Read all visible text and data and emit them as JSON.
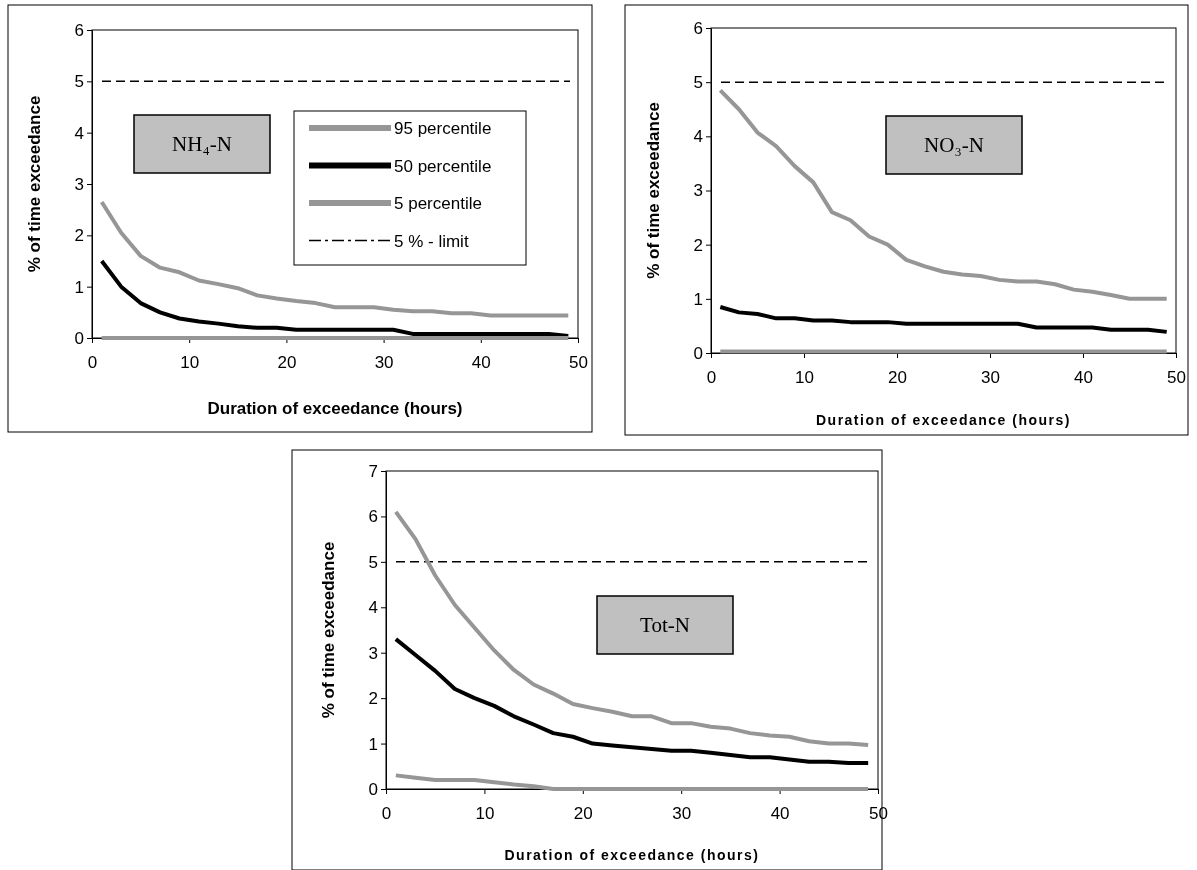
{
  "chart_data": [
    {
      "type": "line",
      "annotations": [
        "NH₄-N"
      ],
      "xlabel": "Duration of exceedance (hours)",
      "ylabel": "% of time exceedance",
      "x": [
        1,
        3,
        5,
        7,
        9,
        11,
        13,
        15,
        17,
        19,
        21,
        23,
        25,
        27,
        29,
        31,
        33,
        35,
        37,
        39,
        41,
        43,
        45,
        47,
        49
      ],
      "xlim": [
        0,
        50
      ],
      "xticks": [
        0,
        10,
        20,
        30,
        40,
        50
      ],
      "ylim": [
        0,
        6
      ],
      "yticks": [
        0,
        1,
        2,
        3,
        4,
        5,
        6
      ],
      "legend": "right",
      "grid": false,
      "ref_lines": [
        {
          "axis": "y",
          "value": 5,
          "label": "5 % - limit",
          "line_style": "dashed",
          "color": "#000000"
        }
      ],
      "series": [
        {
          "name": "95 percentile",
          "color": "#969696",
          "values": [
            2.65,
            2.05,
            1.6,
            1.37,
            1.28,
            1.12,
            1.05,
            0.97,
            0.83,
            0.77,
            0.72,
            0.68,
            0.6,
            0.6,
            0.6,
            0.55,
            0.52,
            0.52,
            0.48,
            0.48,
            0.44,
            0.44,
            0.44,
            0.44,
            0.44
          ]
        },
        {
          "name": "50 percentile",
          "color": "#000000",
          "values": [
            1.5,
            1.0,
            0.68,
            0.5,
            0.38,
            0.32,
            0.28,
            0.23,
            0.2,
            0.2,
            0.16,
            0.16,
            0.16,
            0.16,
            0.16,
            0.16,
            0.08,
            0.08,
            0.08,
            0.08,
            0.08,
            0.08,
            0.08,
            0.08,
            0.04
          ]
        },
        {
          "name": "5 percentile",
          "color": "#969696",
          "values": [
            0,
            0,
            0,
            0,
            0,
            0,
            0,
            0,
            0,
            0,
            0,
            0,
            0,
            0,
            0,
            0,
            0,
            0,
            0,
            0,
            0,
            0,
            0,
            0,
            0
          ]
        }
      ]
    },
    {
      "type": "line",
      "annotations": [
        "NO₃-N"
      ],
      "xlabel": "Duration of exceedance (hours)",
      "ylabel": "% of time exceedance",
      "x": [
        1,
        3,
        5,
        7,
        9,
        11,
        13,
        15,
        17,
        19,
        21,
        23,
        25,
        27,
        29,
        31,
        33,
        35,
        37,
        39,
        41,
        43,
        45,
        47,
        49
      ],
      "xlim": [
        0,
        50
      ],
      "xticks": [
        0,
        10,
        20,
        30,
        40,
        50
      ],
      "ylim": [
        0,
        6
      ],
      "yticks": [
        0,
        1,
        2,
        3,
        4,
        5,
        6
      ],
      "grid": false,
      "ref_lines": [
        {
          "axis": "y",
          "value": 5,
          "line_style": "dashed",
          "color": "#000000"
        }
      ],
      "series": [
        {
          "color": "#969696",
          "values": [
            4.85,
            4.5,
            4.07,
            3.82,
            3.45,
            3.15,
            2.6,
            2.45,
            2.15,
            2.0,
            1.72,
            1.6,
            1.5,
            1.45,
            1.42,
            1.35,
            1.32,
            1.32,
            1.27,
            1.17,
            1.13,
            1.07,
            1.0,
            1.0,
            1.0
          ]
        },
        {
          "color": "#000000",
          "values": [
            0.85,
            0.75,
            0.72,
            0.64,
            0.64,
            0.6,
            0.6,
            0.57,
            0.57,
            0.57,
            0.54,
            0.54,
            0.54,
            0.54,
            0.54,
            0.54,
            0.54,
            0.47,
            0.47,
            0.47,
            0.47,
            0.43,
            0.43,
            0.43,
            0.39
          ]
        },
        {
          "color": "#969696",
          "values": [
            0.03,
            0.03,
            0.03,
            0.03,
            0.03,
            0.03,
            0.03,
            0.03,
            0.03,
            0.03,
            0.03,
            0.03,
            0.03,
            0.03,
            0.03,
            0.03,
            0.03,
            0.03,
            0.03,
            0.03,
            0.03,
            0.03,
            0.03,
            0.03,
            0.03
          ]
        }
      ]
    },
    {
      "type": "line",
      "annotations": [
        "Tot-N"
      ],
      "xlabel": "Duration of exceedance (hours)",
      "ylabel": "% of time exceedance",
      "x": [
        1,
        3,
        5,
        7,
        9,
        11,
        13,
        15,
        17,
        19,
        21,
        23,
        25,
        27,
        29,
        31,
        33,
        35,
        37,
        39,
        41,
        43,
        45,
        47,
        49
      ],
      "xlim": [
        0,
        50
      ],
      "xticks": [
        0,
        10,
        20,
        30,
        40,
        50
      ],
      "ylim": [
        0,
        7
      ],
      "yticks": [
        0,
        1,
        2,
        3,
        4,
        5,
        6,
        7
      ],
      "grid": false,
      "ref_lines": [
        {
          "axis": "y",
          "value": 5,
          "line_style": "dashed",
          "color": "#000000"
        }
      ],
      "series": [
        {
          "color": "#969696",
          "values": [
            6.1,
            5.5,
            4.7,
            4.05,
            3.55,
            3.05,
            2.62,
            2.3,
            2.1,
            1.87,
            1.78,
            1.7,
            1.6,
            1.6,
            1.45,
            1.45,
            1.37,
            1.33,
            1.23,
            1.18,
            1.15,
            1.05,
            1.0,
            1.0,
            0.97
          ]
        },
        {
          "color": "#000000",
          "values": [
            3.3,
            2.95,
            2.6,
            2.2,
            2.0,
            1.83,
            1.6,
            1.42,
            1.23,
            1.15,
            1.0,
            0.96,
            0.92,
            0.88,
            0.84,
            0.84,
            0.8,
            0.75,
            0.7,
            0.7,
            0.65,
            0.6,
            0.6,
            0.57,
            0.57
          ]
        },
        {
          "color": "#969696",
          "values": [
            0.3,
            0.25,
            0.2,
            0.2,
            0.2,
            0.15,
            0.1,
            0.06,
            0,
            0,
            0,
            0,
            0,
            0,
            0,
            0,
            0,
            0,
            0,
            0,
            0,
            0,
            0,
            0,
            0
          ]
        }
      ]
    }
  ]
}
